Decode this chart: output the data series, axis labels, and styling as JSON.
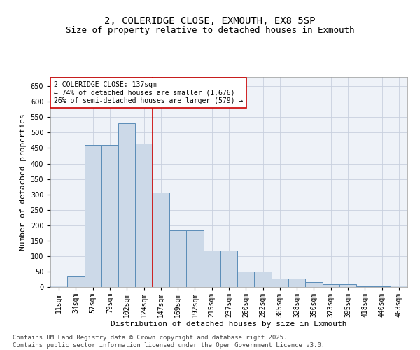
{
  "title_line1": "2, COLERIDGE CLOSE, EXMOUTH, EX8 5SP",
  "title_line2": "Size of property relative to detached houses in Exmouth",
  "xlabel": "Distribution of detached houses by size in Exmouth",
  "ylabel": "Number of detached properties",
  "bar_labels": [
    "11sqm",
    "34sqm",
    "57sqm",
    "79sqm",
    "102sqm",
    "124sqm",
    "147sqm",
    "169sqm",
    "192sqm",
    "215sqm",
    "237sqm",
    "260sqm",
    "282sqm",
    "305sqm",
    "328sqm",
    "350sqm",
    "373sqm",
    "395sqm",
    "418sqm",
    "440sqm",
    "463sqm"
  ],
  "bar_values": [
    5,
    35,
    460,
    460,
    530,
    465,
    307,
    183,
    183,
    118,
    118,
    50,
    50,
    27,
    27,
    15,
    10,
    8,
    3,
    3,
    5
  ],
  "bar_color": "#ccd9e8",
  "bar_edge_color": "#5b8db8",
  "ylim": [
    0,
    680
  ],
  "yticks": [
    0,
    50,
    100,
    150,
    200,
    250,
    300,
    350,
    400,
    450,
    500,
    550,
    600,
    650
  ],
  "vline_x_bin": 5,
  "annotation_title": "2 COLERIDGE CLOSE: 137sqm",
  "annotation_line2": "← 74% of detached houses are smaller (1,676)",
  "annotation_line3": "26% of semi-detached houses are larger (579) →",
  "annotation_box_color": "#ffffff",
  "annotation_border_color": "#cc0000",
  "vline_color": "#cc0000",
  "footer_line1": "Contains HM Land Registry data © Crown copyright and database right 2025.",
  "footer_line2": "Contains public sector information licensed under the Open Government Licence v3.0.",
  "background_color": "#eef2f8",
  "grid_color": "#c8d0de",
  "title1_fontsize": 10,
  "title2_fontsize": 9,
  "axis_label_fontsize": 8,
  "tick_fontsize": 7,
  "annotation_fontsize": 7,
  "footer_fontsize": 6.5
}
